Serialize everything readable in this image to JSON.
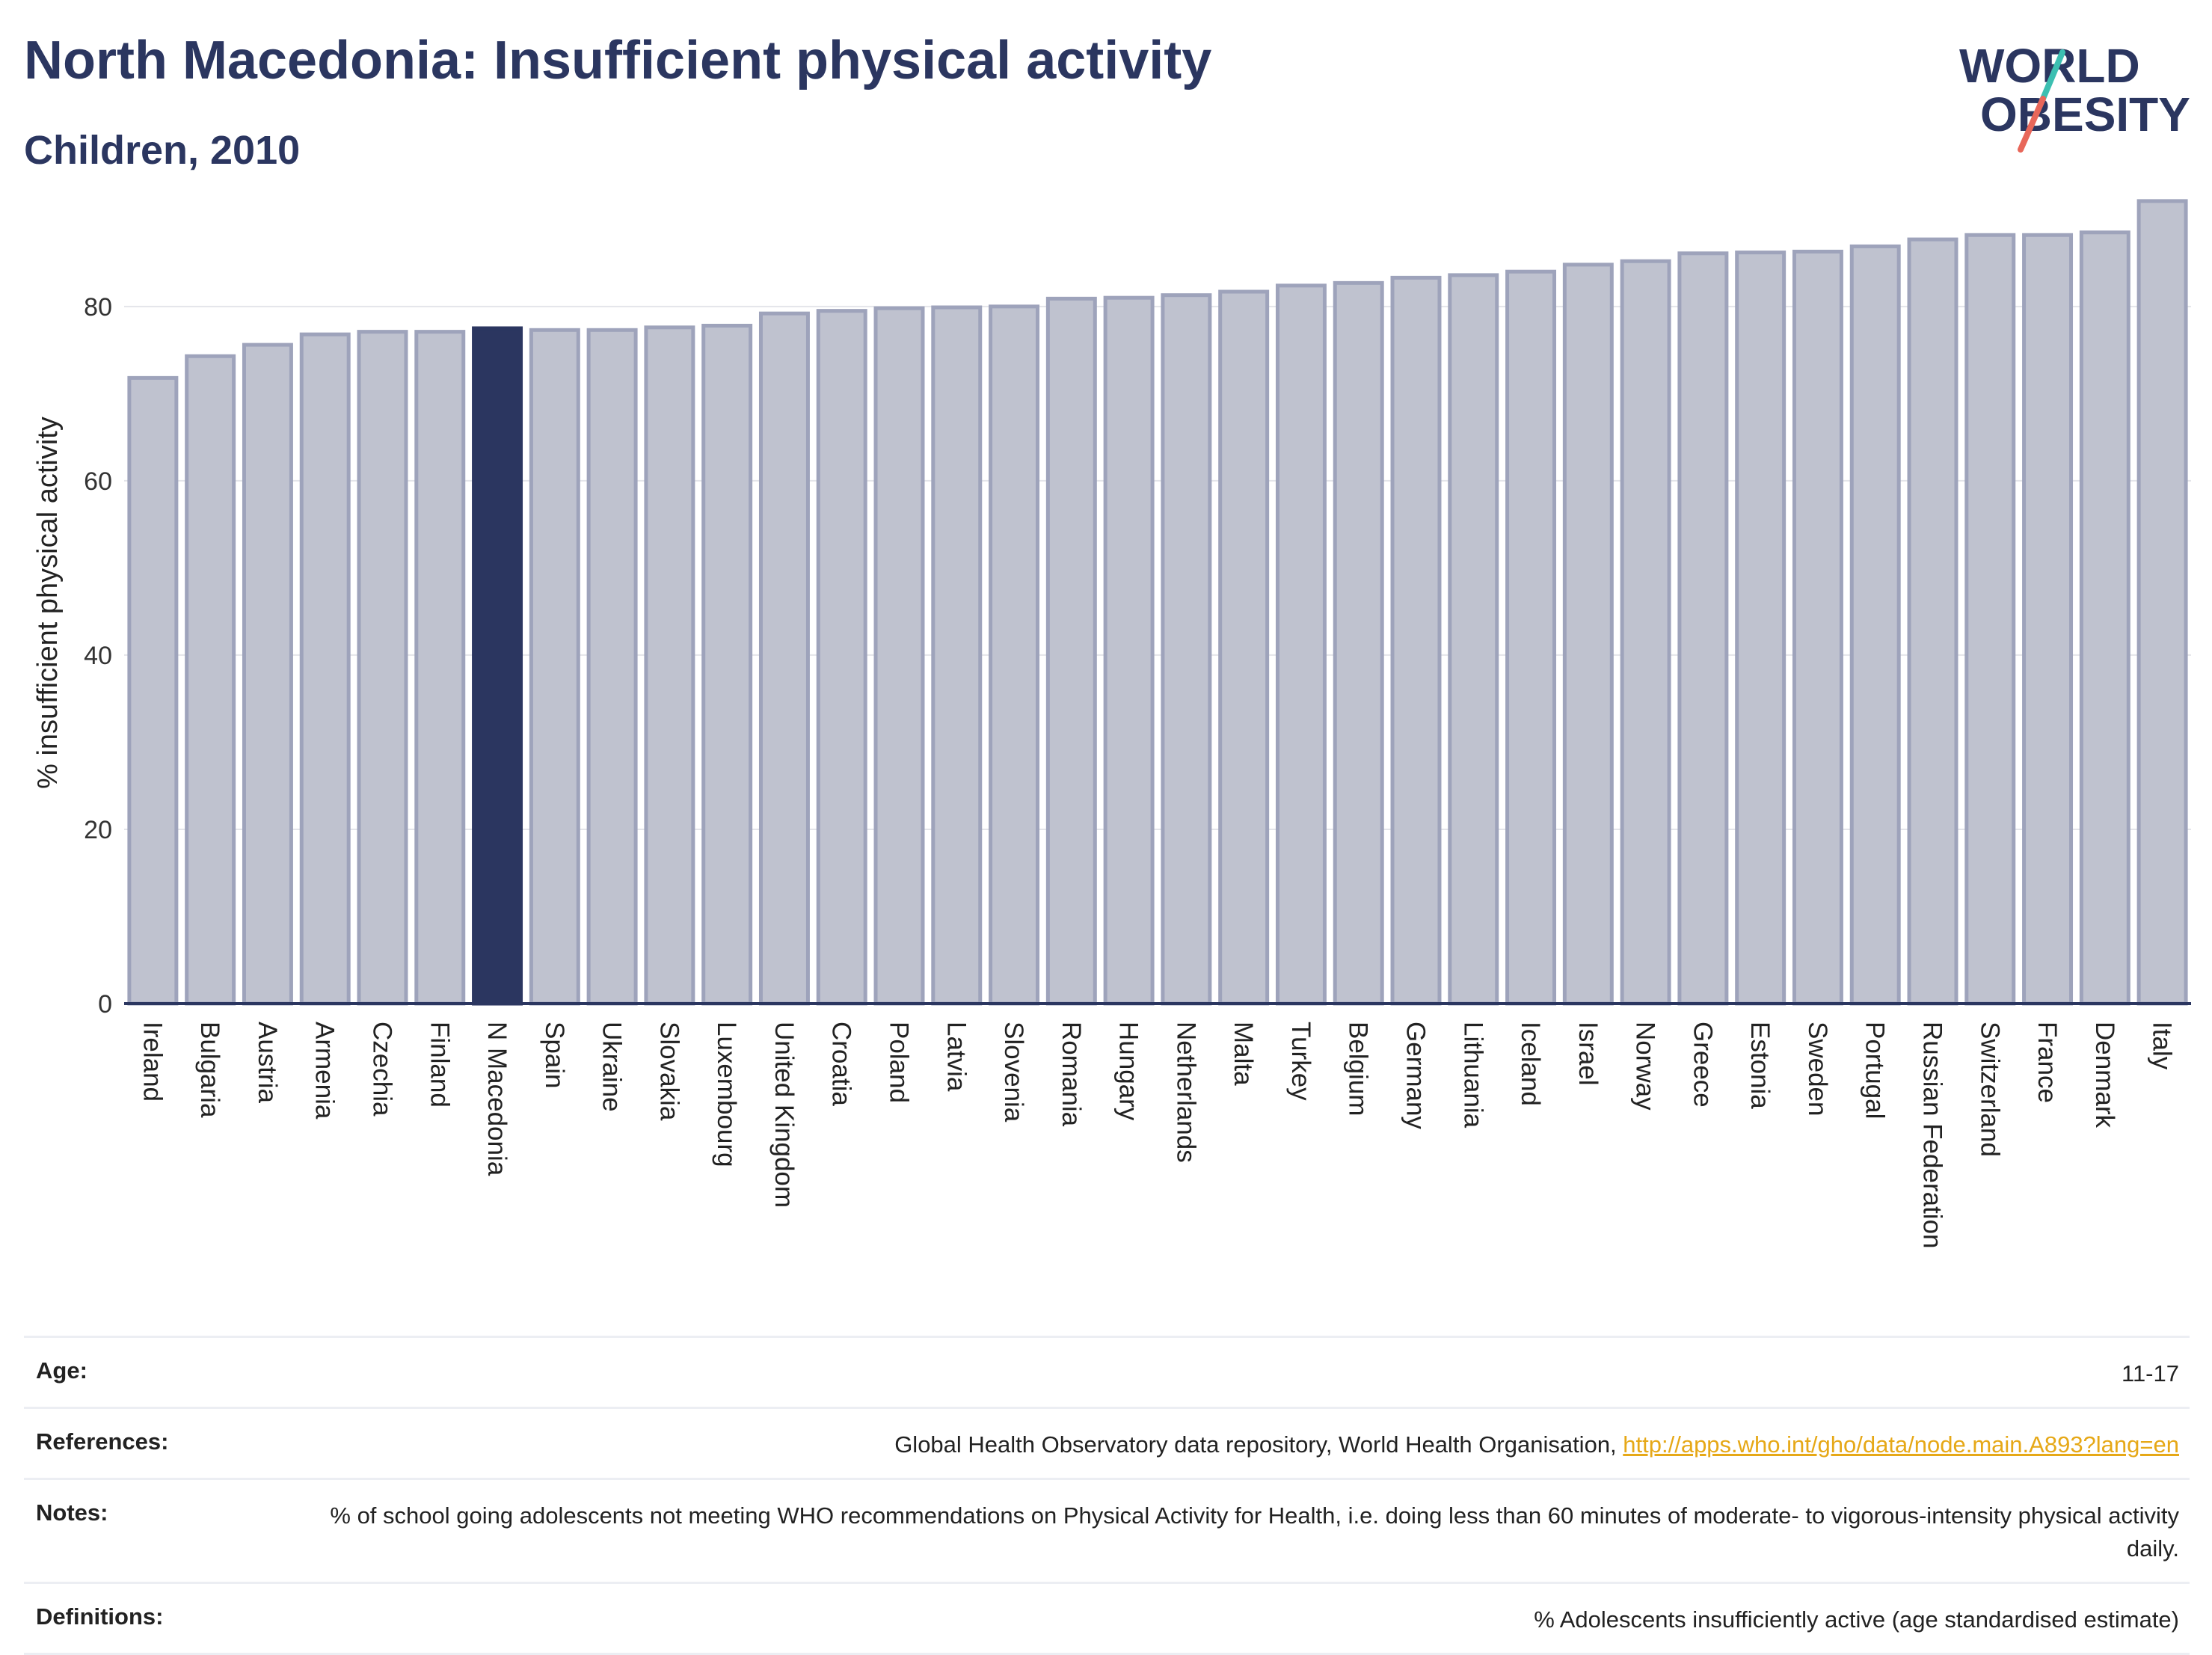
{
  "header": {
    "title": "North Macedonia: Insufficient physical activity",
    "subtitle": "Children, 2010"
  },
  "logo": {
    "line1": "WORLD",
    "line2": "OBESITY"
  },
  "colors": {
    "bar": "#bfc2cf",
    "bar_edge": "#9ea3bb",
    "highlight": "#2b3660",
    "text": "#2b3660",
    "link": "#e6a817",
    "logo_slash_teal": "#3cbfb1",
    "logo_slash_red": "#e8675a"
  },
  "chart_data": {
    "type": "bar",
    "title": "North Macedonia: Insufficient physical activity",
    "subtitle": "Children, 2010",
    "xlabel": "",
    "ylabel": "% insufficient physical activity",
    "ylim": [
      0,
      92
    ],
    "yticks": [
      0,
      20,
      40,
      60,
      80
    ],
    "grid": true,
    "highlight": "N Macedonia",
    "categories": [
      "Ireland",
      "Bulgaria",
      "Austria",
      "Armenia",
      "Czechia",
      "Finland",
      "N Macedonia",
      "Spain",
      "Ukraine",
      "Slovakia",
      "Luxembourg",
      "United Kingdom",
      "Croatia",
      "Poland",
      "Latvia",
      "Slovenia",
      "Romania",
      "Hungary",
      "Netherlands",
      "Malta",
      "Turkey",
      "Belgium",
      "Germany",
      "Lithuania",
      "Iceland",
      "Israel",
      "Norway",
      "Greece",
      "Estonia",
      "Sweden",
      "Portugal",
      "Russian Federation",
      "Switzerland",
      "France",
      "Denmark",
      "Italy"
    ],
    "values": [
      71.8,
      74.3,
      75.6,
      76.8,
      77.1,
      77.1,
      77.5,
      77.3,
      77.3,
      77.6,
      77.8,
      79.2,
      79.5,
      79.8,
      79.9,
      80.0,
      80.9,
      81.0,
      81.3,
      81.7,
      82.4,
      82.7,
      83.3,
      83.6,
      84.0,
      84.8,
      85.2,
      86.1,
      86.2,
      86.3,
      86.9,
      87.7,
      88.2,
      88.2,
      88.5,
      92.1
    ]
  },
  "details": {
    "age_label": "Age:",
    "age_value": "11-17",
    "references_label": "References:",
    "references_text": "Global Health Observatory data repository, World Health Organisation, ",
    "references_link": "http://apps.who.int/gho/data/node.main.A893?lang=en",
    "notes_label": "Notes:",
    "notes_value": "% of school going adolescents not meeting WHO recommendations on Physical Activity for Health, i.e. doing less than 60 minutes of moderate- to vigorous-intensity physical activity daily.",
    "definitions_label": "Definitions:",
    "definitions_value": "% Adolescents insufficiently active (age standardised estimate)"
  }
}
